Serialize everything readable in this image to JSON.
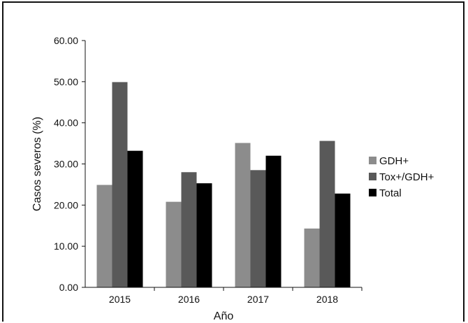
{
  "chart_data": {
    "type": "bar",
    "categories": [
      "2015",
      "2016",
      "2017",
      "2018"
    ],
    "series": [
      {
        "name": "GDH+",
        "values": [
          24.9,
          20.8,
          35.1,
          14.3
        ],
        "color": "#8c8c8c"
      },
      {
        "name": "Tox+/GDH+",
        "values": [
          49.9,
          28.0,
          28.5,
          35.6
        ],
        "color": "#595959"
      },
      {
        "name": "Total",
        "values": [
          33.2,
          25.3,
          32.0,
          22.8
        ],
        "color": "#000000"
      }
    ],
    "xlabel": "Año",
    "ylabel": "Casos severos (%)",
    "ylim": [
      0,
      60
    ],
    "yticks": [
      "0.00",
      "10.00",
      "20.00",
      "30.00",
      "40.00",
      "50.00",
      "60.00"
    ],
    "grid": false,
    "legend": "right"
  }
}
